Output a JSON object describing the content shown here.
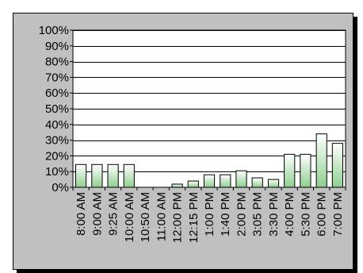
{
  "chart_data": {
    "type": "bar",
    "categories": [
      "8:00 AM",
      "9:00 AM",
      "9:25 AM",
      "10:00 AM",
      "10:50 AM",
      "11:00 AM",
      "12:00 PM",
      "12:15 PM",
      "1:00 PM",
      "1:40 PM",
      "2:00 PM",
      "3:05 PM",
      "3:30 PM",
      "4:00 PM",
      "5:30 PM",
      "6:00 PM",
      "7:00 PM"
    ],
    "values": [
      14.5,
      14.5,
      14.5,
      14.5,
      0,
      0,
      2,
      4,
      8,
      8,
      10.5,
      6,
      5,
      21,
      21,
      34,
      28
    ],
    "y_ticks": [
      "0%",
      "10%",
      "20%",
      "30%",
      "40%",
      "50%",
      "60%",
      "70%",
      "80%",
      "90%",
      "100%"
    ],
    "ylim": [
      0,
      100
    ],
    "grid": true,
    "legend": "none",
    "colors": {
      "background": "#c0c0c0",
      "plot_area": "#ffffff",
      "bar_top": "#ffffff",
      "bar_bottom": "#8fcf8f",
      "bar_stroke": "#000000",
      "gridline": "#000000"
    }
  }
}
